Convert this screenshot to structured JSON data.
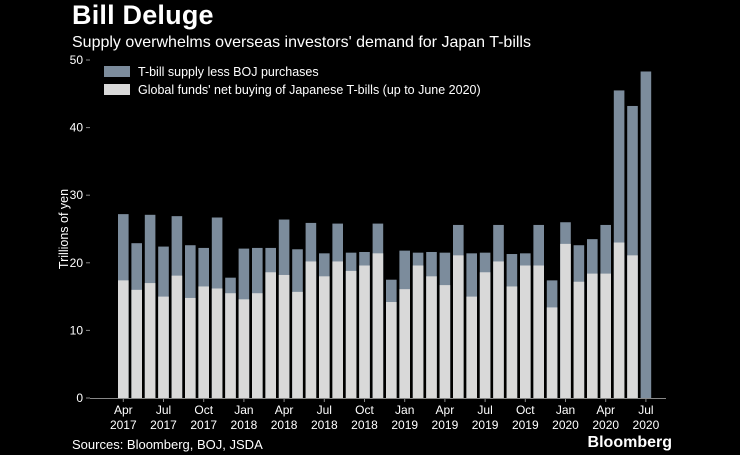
{
  "header": {
    "title": "Bill Deluge",
    "subtitle": "Supply overwhelms overseas investors' demand for Japan T-bills"
  },
  "footer": {
    "source": "Sources: Bloomberg, BOJ, JSDA",
    "brand": "Bloomberg"
  },
  "chart_data": {
    "type": "bar",
    "stacked": "overlay",
    "title": "Bill Deluge",
    "subtitle": "Supply overwhelms overseas investors' demand for Japan T-bills",
    "ylabel": "Trillions of yen",
    "xlabel": "",
    "ylim": [
      0,
      50
    ],
    "yticks": [
      0,
      10,
      20,
      30,
      40,
      50
    ],
    "legend_position": "top-left",
    "colors": {
      "supply": "#7c8c9c",
      "demand": "#d9d9d9",
      "background": "#000000",
      "axis": "#888888"
    },
    "x_tick_labels": [
      {
        "index": 0,
        "line1": "Apr",
        "line2": "2017"
      },
      {
        "index": 3,
        "line1": "Jul",
        "line2": "2017"
      },
      {
        "index": 6,
        "line1": "Oct",
        "line2": "2017"
      },
      {
        "index": 9,
        "line1": "Jan",
        "line2": "2018"
      },
      {
        "index": 12,
        "line1": "Apr",
        "line2": "2018"
      },
      {
        "index": 15,
        "line1": "Jul",
        "line2": "2018"
      },
      {
        "index": 18,
        "line1": "Oct",
        "line2": "2018"
      },
      {
        "index": 21,
        "line1": "Jan",
        "line2": "2019"
      },
      {
        "index": 24,
        "line1": "Apr",
        "line2": "2019"
      },
      {
        "index": 27,
        "line1": "Jul",
        "line2": "2019"
      },
      {
        "index": 30,
        "line1": "Oct",
        "line2": "2019"
      },
      {
        "index": 33,
        "line1": "Jan",
        "line2": "2020"
      },
      {
        "index": 36,
        "line1": "Apr",
        "line2": "2020"
      },
      {
        "index": 39,
        "line1": "Jul",
        "line2": "2020"
      }
    ],
    "series": [
      {
        "name": "T-bill supply less BOJ purchases",
        "key": "supply",
        "values": [
          27.2,
          22.9,
          27.1,
          22.4,
          26.9,
          22.6,
          22.2,
          26.7,
          17.8,
          22.1,
          22.2,
          22.2,
          26.4,
          22.0,
          25.9,
          21.4,
          25.8,
          21.5,
          21.6,
          25.8,
          17.5,
          21.8,
          21.5,
          21.6,
          21.5,
          25.6,
          21.4,
          21.5,
          25.6,
          21.3,
          21.4,
          25.6,
          17.4,
          26.0,
          22.6,
          23.5,
          25.6,
          45.5,
          43.2,
          48.3
        ]
      },
      {
        "name": "Global funds' net buying of Japanese T-bills (up to June 2020)",
        "key": "demand",
        "values": [
          17.4,
          16.0,
          17.0,
          15.0,
          18.1,
          14.8,
          16.5,
          16.2,
          15.5,
          14.6,
          15.5,
          18.6,
          18.2,
          15.7,
          20.2,
          18.0,
          20.2,
          18.8,
          19.6,
          21.4,
          14.2,
          16.1,
          19.6,
          18.0,
          16.7,
          21.1,
          15.0,
          18.6,
          20.2,
          16.5,
          19.6,
          19.6,
          13.4,
          22.8,
          17.2,
          18.4,
          18.4,
          23.0,
          21.1,
          null
        ]
      }
    ]
  }
}
